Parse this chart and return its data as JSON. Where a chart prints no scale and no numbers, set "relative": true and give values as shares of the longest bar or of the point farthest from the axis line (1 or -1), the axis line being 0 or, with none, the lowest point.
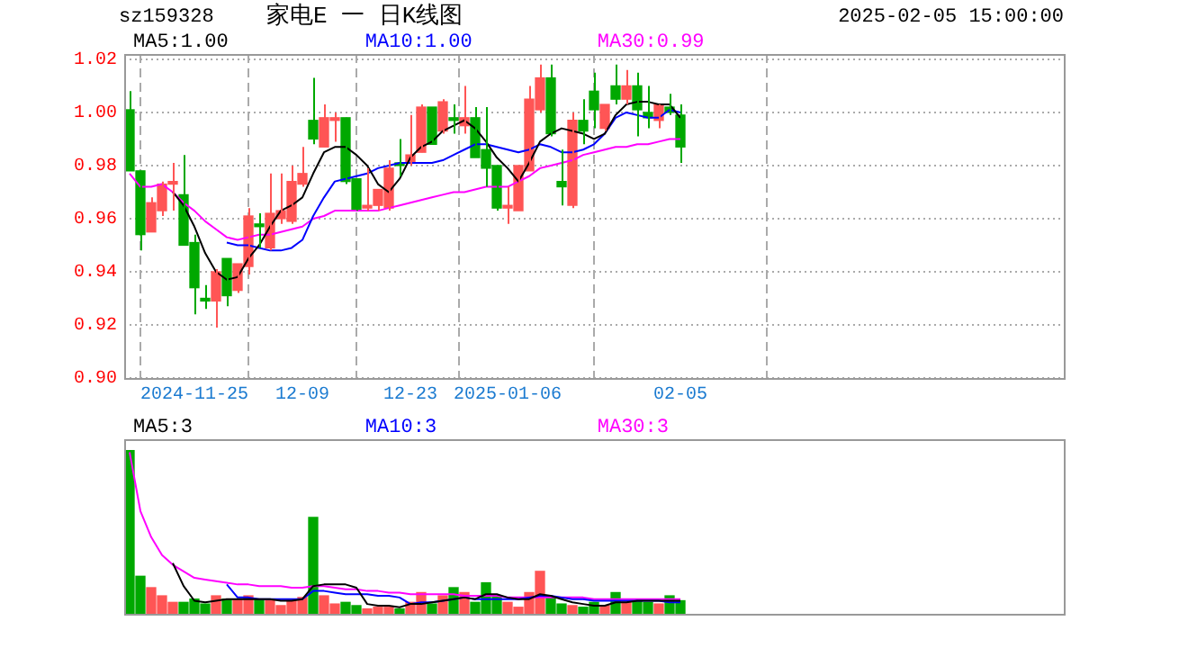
{
  "chart_data": [
    {
      "type": "candlestick",
      "title": "家电E 一 日K线图",
      "subtitle": "sz159328",
      "annotations": [
        "2025-02-05 15:00:00"
      ],
      "categories": [
        null,
        null,
        null,
        null,
        null,
        null,
        "2024-11-25",
        null,
        null,
        null,
        null,
        null,
        null,
        null,
        null,
        null,
        "12-09",
        null,
        null,
        null,
        null,
        null,
        null,
        null,
        null,
        null,
        "12-23",
        null,
        null,
        null,
        null,
        null,
        null,
        null,
        null,
        "2025-01-06",
        null,
        null,
        null,
        null,
        null,
        null,
        null,
        null,
        null,
        null,
        null,
        null,
        null,
        null,
        null,
        "02-05"
      ],
      "ohlc": [
        [
          1.001,
          1.008,
          0.978,
          0.978
        ],
        [
          0.978,
          0.978,
          0.948,
          0.954
        ],
        [
          0.955,
          0.968,
          0.955,
          0.966
        ],
        [
          0.963,
          0.974,
          0.961,
          0.973
        ],
        [
          0.973,
          0.981,
          0.963,
          0.974
        ],
        [
          0.969,
          0.984,
          0.95,
          0.95
        ],
        [
          0.951,
          0.954,
          0.924,
          0.934
        ],
        [
          0.93,
          0.935,
          0.926,
          0.929
        ],
        [
          0.929,
          0.941,
          0.919,
          0.94
        ],
        [
          0.945,
          0.945,
          0.927,
          0.931
        ],
        [
          0.933,
          0.943,
          0.932,
          0.943
        ],
        [
          0.942,
          0.964,
          0.939,
          0.961
        ],
        [
          0.958,
          0.962,
          0.949,
          0.957
        ],
        [
          0.949,
          0.977,
          0.948,
          0.962
        ],
        [
          0.96,
          0.977,
          0.958,
          0.963
        ],
        [
          0.959,
          0.98,
          0.958,
          0.974
        ],
        [
          0.973,
          0.987,
          0.972,
          0.977
        ],
        [
          0.997,
          1.013,
          0.988,
          0.99
        ],
        [
          0.987,
          1.003,
          0.987,
          0.998
        ],
        [
          0.997,
          1.0,
          0.989,
          0.998
        ],
        [
          0.998,
          0.998,
          0.973,
          0.974
        ],
        [
          0.975,
          0.975,
          0.963,
          0.963
        ],
        [
          0.964,
          0.979,
          0.963,
          0.965
        ],
        [
          0.965,
          0.971,
          0.963,
          0.971
        ],
        [
          0.964,
          0.982,
          0.963,
          0.979
        ],
        [
          0.981,
          0.99,
          0.976,
          0.98
        ],
        [
          0.981,
          0.999,
          0.98,
          0.984
        ],
        [
          0.985,
          1.003,
          0.985,
          1.002
        ],
        [
          1.002,
          1.002,
          0.988,
          0.988
        ],
        [
          0.993,
          1.005,
          0.992,
          1.004
        ],
        [
          0.998,
          1.003,
          0.992,
          0.997
        ],
        [
          0.995,
          1.01,
          0.992,
          0.998
        ],
        [
          0.998,
          1.002,
          0.983,
          0.983
        ],
        [
          0.986,
          1.002,
          0.972,
          0.979
        ],
        [
          0.98,
          0.98,
          0.963,
          0.964
        ],
        [
          0.964,
          0.972,
          0.958,
          0.965
        ],
        [
          0.963,
          0.98,
          0.963,
          0.98
        ],
        [
          0.978,
          1.01,
          0.978,
          1.005
        ],
        [
          1.001,
          1.018,
          1.0,
          1.013
        ],
        [
          1.013,
          1.018,
          0.991,
          0.992
        ],
        [
          0.974,
          0.986,
          0.965,
          0.972
        ],
        [
          0.965,
          1.0,
          0.964,
          0.997
        ],
        [
          0.997,
          1.005,
          0.988,
          0.993
        ],
        [
          1.008,
          1.015,
          0.994,
          1.001
        ],
        [
          0.994,
          1.003,
          0.993,
          1.003
        ],
        [
          1.01,
          1.018,
          1.003,
          1.005
        ],
        [
          1.005,
          1.016,
          1.003,
          1.01
        ],
        [
          1.01,
          1.015,
          0.991,
          1.001
        ],
        [
          1.0,
          1.01,
          0.994,
          0.998
        ],
        [
          0.997,
          1.003,
          0.994,
          1.003
        ],
        [
          1.002,
          1.007,
          0.999,
          1.0
        ],
        [
          0.999,
          1.003,
          0.981,
          0.987
        ]
      ],
      "colors": [
        "#00a800",
        "#00a800",
        "#ff5555",
        "#ff5555",
        "#ff5555",
        "#00a800",
        "#00a800",
        "#00a800",
        "#ff5555",
        "#00a800",
        "#ff5555",
        "#ff5555",
        "#00a800",
        "#ff5555",
        "#ff5555",
        "#ff5555",
        "#ff5555",
        "#00a800",
        "#ff5555",
        "#ff5555",
        "#00a800",
        "#00a800",
        "#ff5555",
        "#ff5555",
        "#ff5555",
        "#00a800",
        "#ff5555",
        "#ff5555",
        "#00a800",
        "#ff5555",
        "#00a800",
        "#ff5555",
        "#00a800",
        "#00a800",
        "#00a800",
        "#ff5555",
        "#ff5555",
        "#ff5555",
        "#ff5555",
        "#00a800",
        "#00a800",
        "#ff5555",
        "#00a800",
        "#00a800",
        "#ff5555",
        "#00a800",
        "#ff5555",
        "#00a800",
        "#00a800",
        "#ff5555",
        "#00a800",
        "#00a800"
      ],
      "series": [
        {
          "type": "line",
          "name": "MA5:1.00",
          "color": "#000000",
          "values": [
            null,
            null,
            null,
            null,
            0.97,
            0.965,
            0.957,
            0.947,
            0.94,
            0.937,
            0.938,
            0.945,
            0.95,
            0.957,
            0.963,
            0.965,
            0.968,
            0.977,
            0.985,
            0.987,
            0.987,
            0.984,
            0.98,
            0.973,
            0.97,
            0.975,
            0.983,
            0.987,
            0.989,
            0.993,
            0.995,
            0.997,
            0.994,
            0.989,
            0.983,
            0.979,
            0.974,
            0.981,
            0.989,
            0.992,
            0.994,
            0.993,
            0.992,
            0.99,
            0.992,
            0.999,
            1.003,
            1.004,
            1.004,
            1.003,
            1.003,
            0.998
          ]
        },
        {
          "type": "line",
          "name": "MA10:1.00",
          "color": "#0000ff",
          "values": [
            null,
            null,
            null,
            null,
            null,
            null,
            null,
            null,
            null,
            0.951,
            0.95,
            0.95,
            0.949,
            0.948,
            0.948,
            0.949,
            0.952,
            0.961,
            0.968,
            0.974,
            0.975,
            0.976,
            0.977,
            0.979,
            0.98,
            0.981,
            0.981,
            0.981,
            0.981,
            0.982,
            0.984,
            0.986,
            0.988,
            0.988,
            0.987,
            0.986,
            0.985,
            0.986,
            0.988,
            0.987,
            0.985,
            0.985,
            0.986,
            0.988,
            0.992,
            0.998,
            1.0,
            0.999,
            0.998,
            0.998,
            1.001,
            1.0
          ]
        },
        {
          "type": "line",
          "name": "MA30:0.99",
          "color": "#ff00ff",
          "values": [
            0.977,
            0.972,
            0.972,
            0.973,
            0.97,
            0.966,
            0.963,
            0.959,
            0.956,
            0.953,
            0.952,
            0.953,
            0.954,
            0.954,
            0.955,
            0.956,
            0.957,
            0.96,
            0.961,
            0.963,
            0.963,
            0.963,
            0.963,
            0.963,
            0.964,
            0.965,
            0.966,
            0.967,
            0.968,
            0.969,
            0.97,
            0.97,
            0.971,
            0.972,
            0.972,
            0.972,
            0.974,
            0.976,
            0.979,
            0.98,
            0.981,
            0.982,
            0.984,
            0.985,
            0.986,
            0.987,
            0.987,
            0.988,
            0.988,
            0.989,
            0.99,
            0.99
          ]
        }
      ],
      "ylim": [
        0.9,
        1.022
      ],
      "yticks": [
        {
          "value": 0.9,
          "label": "0.90"
        },
        0.92,
        0.94,
        0.96,
        0.98,
        {
          "value": 1,
          "label": "1.00"
        },
        1.02
      ],
      "grid": true,
      "legend": "top"
    },
    {
      "type": "bar",
      "relative": true,
      "legend": "top",
      "categories": [
        null,
        null,
        null,
        null,
        null,
        null,
        null,
        null,
        null,
        null,
        null,
        null,
        null,
        null,
        null,
        null,
        null,
        null,
        null,
        null,
        null,
        null,
        null,
        null,
        null,
        null,
        null,
        null,
        null,
        null,
        null,
        null,
        null,
        null,
        null,
        null,
        null,
        null,
        null,
        null,
        null,
        null,
        null,
        null,
        null,
        null,
        null,
        null,
        null,
        null,
        null,
        null
      ],
      "series": [
        {
          "type": "bar",
          "colors": [
            "#00a800",
            "#00a800",
            "#ff5555",
            "#ff5555",
            "#ff5555",
            "#00a800",
            "#00a800",
            "#00a800",
            "#ff5555",
            "#00a800",
            "#ff5555",
            "#ff5555",
            "#00a800",
            "#ff5555",
            "#ff5555",
            "#ff5555",
            "#ff5555",
            "#00a800",
            "#ff5555",
            "#ff5555",
            "#00a800",
            "#00a800",
            "#ff5555",
            "#ff5555",
            "#ff5555",
            "#00a800",
            "#ff5555",
            "#ff5555",
            "#00a800",
            "#ff5555",
            "#00a800",
            "#ff5555",
            "#00a800",
            "#00a800",
            "#00a800",
            "#ff5555",
            "#ff5555",
            "#ff5555",
            "#ff5555",
            "#00a800",
            "#00a800",
            "#ff5555",
            "#00a800",
            "#00a800",
            "#ff5555",
            "#00a800",
            "#ff5555",
            "#00a800",
            "#00a800",
            "#ff5555",
            "#00a800",
            "#00a800"
          ],
          "values": [
            1,
            0.23,
            0.16,
            0.11,
            0.07,
            0.07,
            0.09,
            0.06,
            0.11,
            0.09,
            0.09,
            0.11,
            0.09,
            0.09,
            0.05,
            0.08,
            0.1,
            0.59,
            0.11,
            0.06,
            0.07,
            0.05,
            0.03,
            0.04,
            0.04,
            0.03,
            0.07,
            0.13,
            0.06,
            0.11,
            0.16,
            0.13,
            0.07,
            0.19,
            0.11,
            0.07,
            0.04,
            0.13,
            0.26,
            0.1,
            0.06,
            0.05,
            0.04,
            0.07,
            0.05,
            0.13,
            0.07,
            0.08,
            0.07,
            0.06,
            0.11,
            0.08
          ]
        },
        {
          "type": "line",
          "name": "MA5:3",
          "color": "#000000",
          "values": [
            null,
            null,
            null,
            null,
            0.31,
            0.17,
            0.08,
            0.07,
            0.08,
            0.09,
            0.09,
            0.09,
            0.09,
            0.09,
            0.08,
            0.08,
            0.09,
            0.17,
            0.18,
            0.18,
            0.18,
            0.16,
            0.06,
            0.05,
            0.05,
            0.04,
            0.06,
            0.06,
            0.07,
            0.08,
            0.09,
            0.1,
            0.09,
            0.12,
            0.12,
            0.1,
            0.09,
            0.09,
            0.12,
            0.11,
            0.09,
            0.07,
            0.06,
            0.05,
            0.05,
            0.07,
            0.07,
            0.08,
            0.08,
            0.08,
            0.08,
            0.08
          ]
        },
        {
          "type": "line",
          "name": "MA10:3",
          "color": "#0000ff",
          "values": [
            null,
            null,
            null,
            null,
            null,
            null,
            null,
            null,
            null,
            0.18,
            0.1,
            0.1,
            0.09,
            0.09,
            0.09,
            0.09,
            0.09,
            0.14,
            0.14,
            0.13,
            0.12,
            0.12,
            0.12,
            0.11,
            0.11,
            0.1,
            0.06,
            0.07,
            0.07,
            0.08,
            0.09,
            0.1,
            0.09,
            0.09,
            0.09,
            0.09,
            0.09,
            0.1,
            0.11,
            0.11,
            0.1,
            0.09,
            0.09,
            0.08,
            0.08,
            0.08,
            0.08,
            0.08,
            0.08,
            0.08,
            0.07,
            0.07
          ]
        },
        {
          "type": "line",
          "name": "MA30:3",
          "color": "#ff00ff",
          "values": [
            0.99,
            0.63,
            0.47,
            0.36,
            0.3,
            0.26,
            0.22,
            0.21,
            0.2,
            0.19,
            0.18,
            0.18,
            0.17,
            0.17,
            0.17,
            0.16,
            0.16,
            0.17,
            0.17,
            0.16,
            0.15,
            0.15,
            0.14,
            0.14,
            0.13,
            0.13,
            0.12,
            0.12,
            0.12,
            0.12,
            0.12,
            0.11,
            0.11,
            0.11,
            0.11,
            0.1,
            0.1,
            0.1,
            0.1,
            0.1,
            0.1,
            0.1,
            0.1,
            0.09,
            0.09,
            0.09,
            0.09,
            0.09,
            0.09,
            0.09,
            0.09,
            0.09
          ]
        }
      ]
    }
  ]
}
